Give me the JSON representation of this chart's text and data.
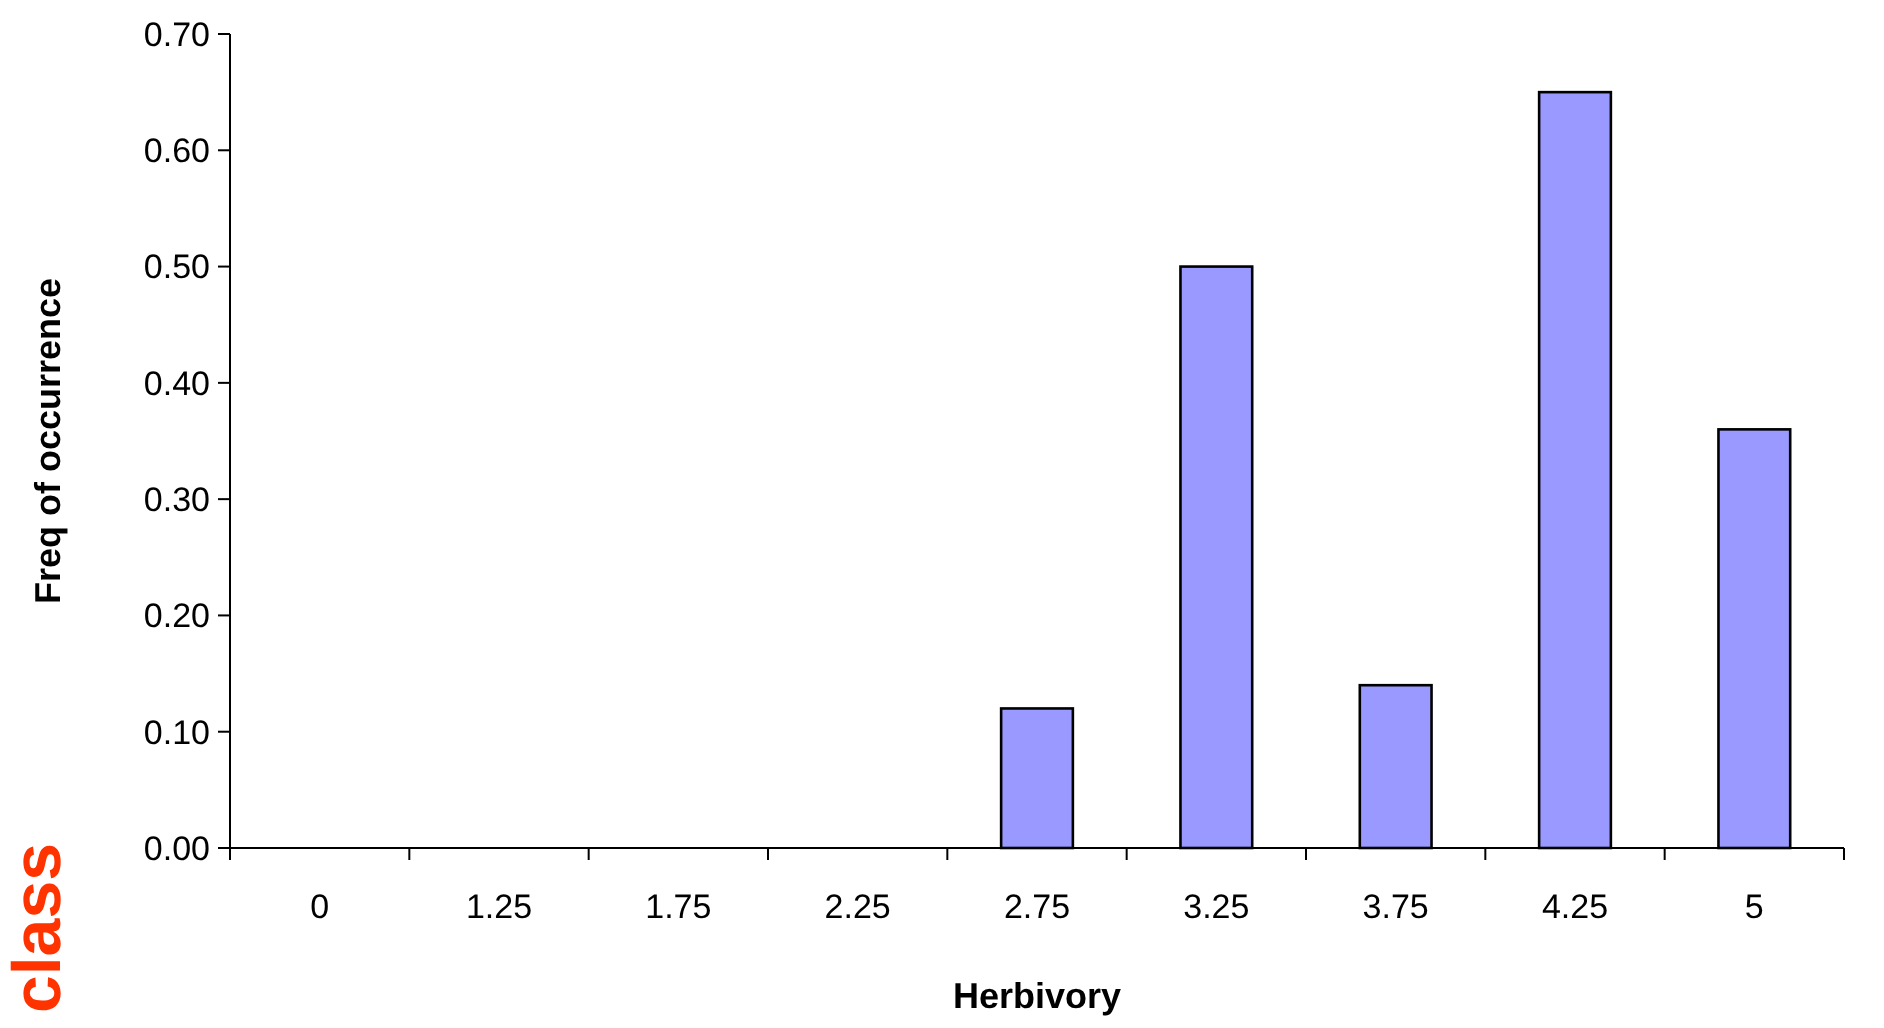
{
  "chart_data": {
    "type": "bar",
    "xlabel": "Herbivory",
    "ylabel": "Freq of occurrence",
    "categories": [
      "0",
      "1.25",
      "1.75",
      "2.25",
      "2.75",
      "3.25",
      "3.75",
      "4.25",
      "5"
    ],
    "values": [
      0,
      0,
      0,
      0,
      0.12,
      0.5,
      0.14,
      0.65,
      0.36
    ],
    "color": "#9999ff",
    "ylim": [
      0,
      0.7
    ],
    "yticks": [
      {
        "value": 0,
        "label": "0.00"
      },
      {
        "value": 0.1,
        "label": "0.10"
      },
      {
        "value": 0.2,
        "label": "0.20"
      },
      {
        "value": 0.3,
        "label": "0.30"
      },
      {
        "value": 0.4,
        "label": "0.40"
      },
      {
        "value": 0.5,
        "label": "0.50"
      },
      {
        "value": 0.6,
        "label": "0.60"
      },
      {
        "value": 0.7,
        "label": "0.70"
      }
    ],
    "grid": false,
    "annotations": [
      "class"
    ]
  }
}
